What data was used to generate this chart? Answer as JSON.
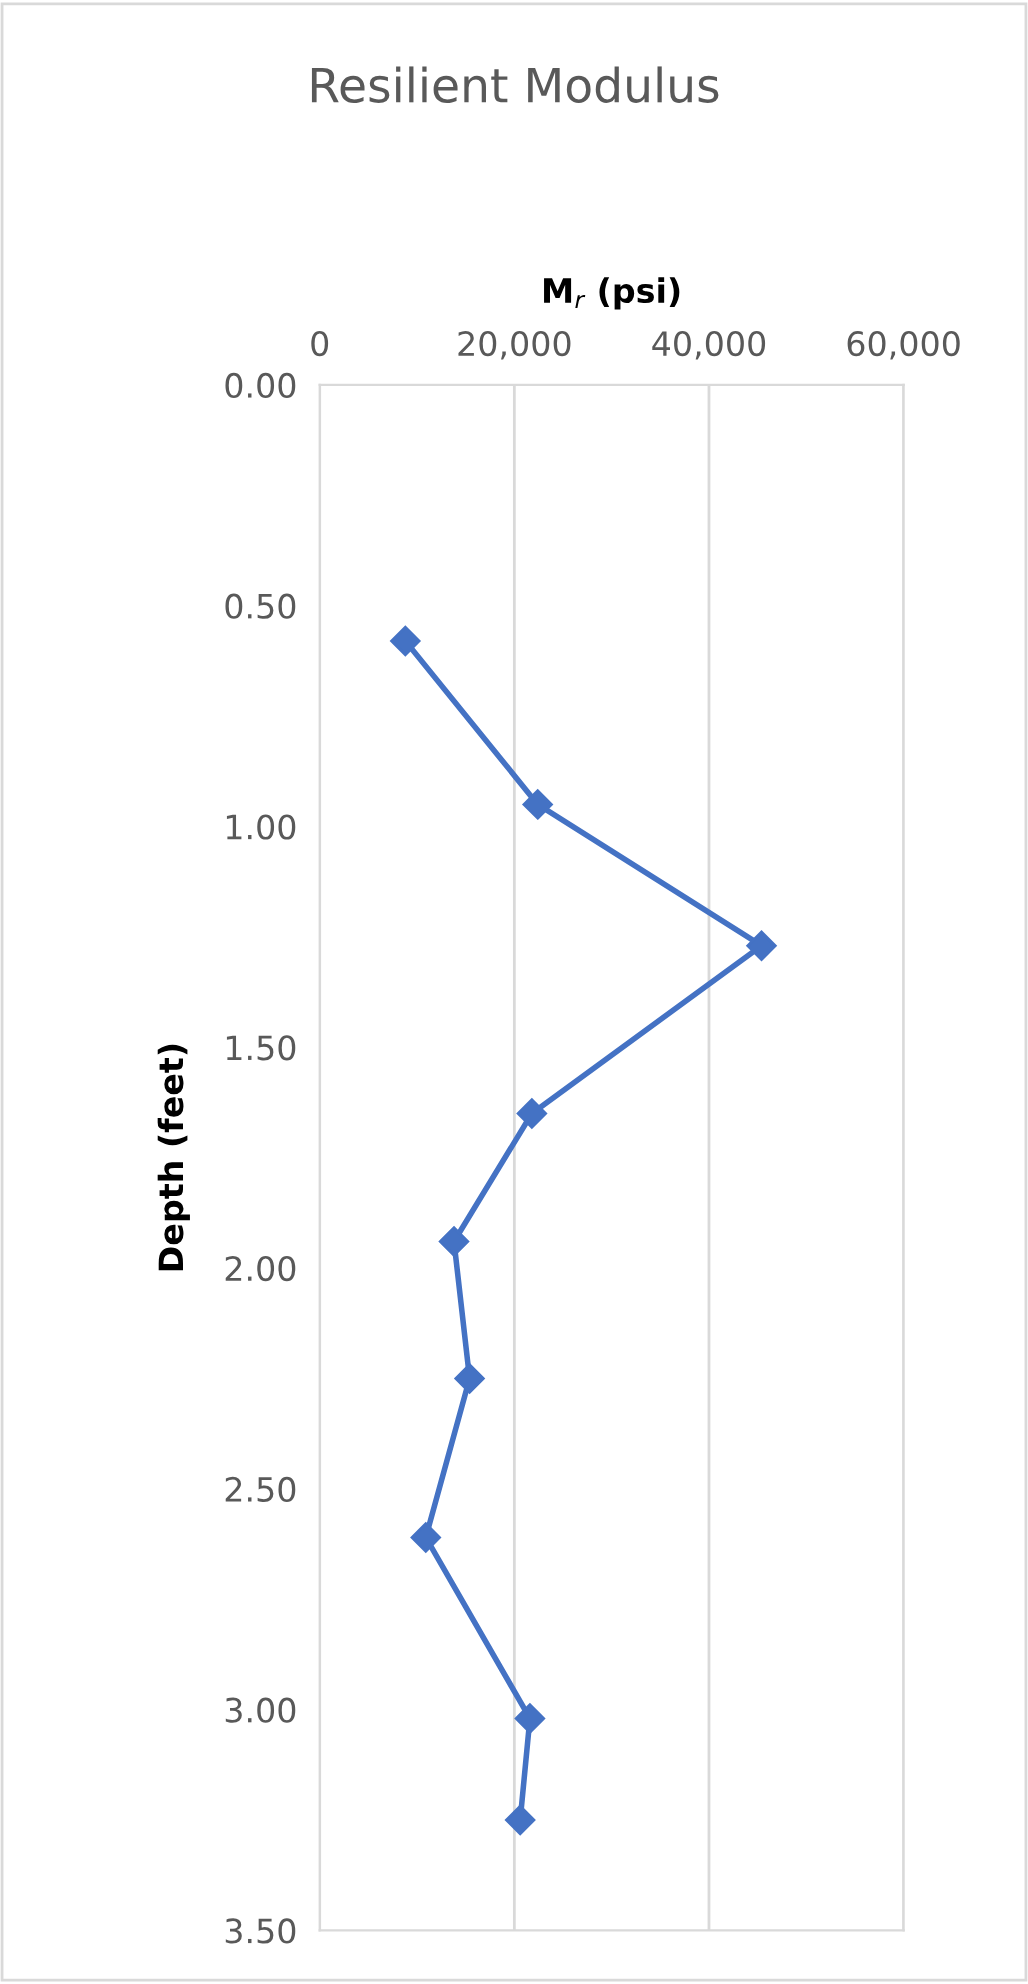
{
  "chart_data": {
    "type": "line",
    "title": "Resilient Modulus",
    "xlabel": "M$_{r}$ (psi)",
    "ylabel": "Depth (feet)",
    "series": [
      {
        "color": "#4472c4",
        "x": [
          8800,
          22400,
          45400,
          21800,
          13800,
          15400,
          10900,
          21600,
          20600
        ],
        "values": [
          0.58,
          0.95,
          1.27,
          1.65,
          1.94,
          2.25,
          2.61,
          3.02,
          3.25
        ]
      }
    ],
    "xlim": [
      0,
      60000
    ],
    "xticks": [
      0,
      {
        "value": 20000,
        "label": "20,000"
      },
      {
        "value": 40000,
        "label": "40,000"
      },
      {
        "value": 60000,
        "label": "60,000"
      }
    ],
    "ylim": [
      3.5,
      0
    ],
    "yticks": [
      {
        "value": 0,
        "label": "0.00"
      },
      {
        "value": 0.5,
        "label": "0.50"
      },
      {
        "value": 1,
        "label": "1.00"
      },
      {
        "value": 1.5,
        "label": "1.50"
      },
      {
        "value": 2,
        "label": "2.00"
      },
      {
        "value": 2.5,
        "label": "2.50"
      },
      {
        "value": 3,
        "label": "3.00"
      },
      {
        "value": 3.5,
        "label": "3.50"
      }
    ],
    "grid": "x",
    "marker": "diamond",
    "line_style": "solid"
  }
}
